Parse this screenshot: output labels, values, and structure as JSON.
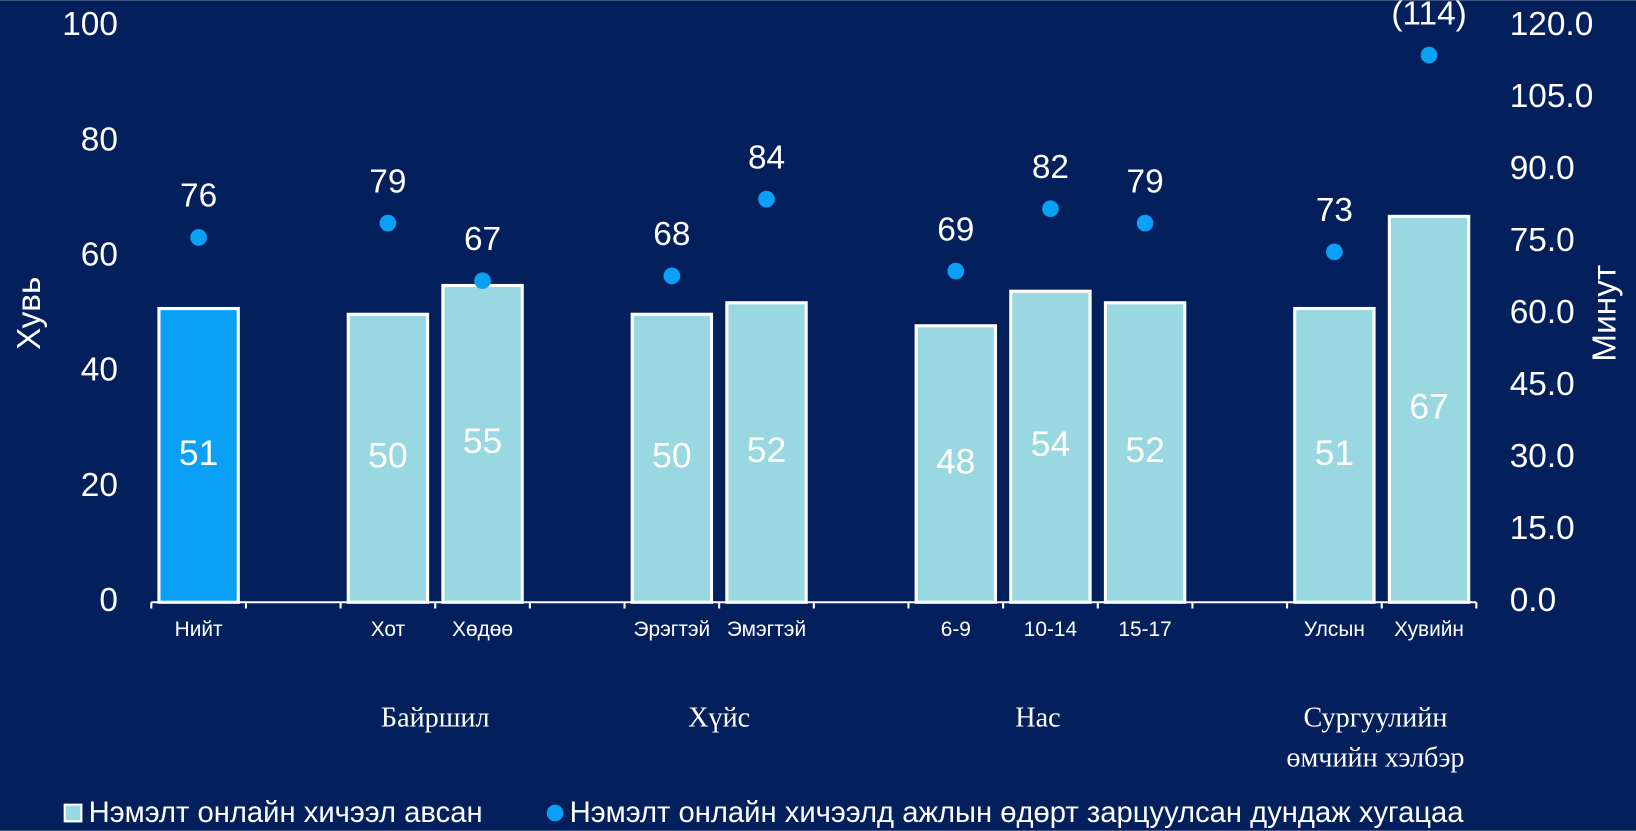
{
  "chart_data": {
    "type": "bar_dot",
    "categories": [
      "Нийт",
      null,
      "Хот",
      "Хөдөө",
      null,
      "Эрэгтэй",
      "Эмэгтэй",
      null,
      "6-9",
      "10-14",
      "15-17",
      null,
      "Улсын",
      "Хувийн"
    ],
    "groups": [
      [
        "Байршил"
      ],
      [
        "Хүйс"
      ],
      [
        "Нас"
      ],
      [
        "Сургуулийн",
        "өмчийн хэлбэр"
      ]
    ],
    "series": [
      {
        "name": "Нэмэлт онлайн хичээл авсан",
        "color": "#99d8e0",
        "colors": [
          "#0aa0f5",
          null,
          "#99d8e0",
          "#99d8e0",
          null,
          "#99d8e0",
          "#99d8e0",
          null,
          "#99d8e0",
          "#99d8e0",
          "#99d8e0",
          null,
          "#99d8e0",
          "#99d8e0"
        ],
        "values": [
          51,
          null,
          50,
          55,
          null,
          50,
          52,
          null,
          48,
          54,
          52,
          null,
          51,
          67
        ]
      },
      {
        "name": "Нэмэлт онлайн хичээлд ажлын өдөрт зарцуулсан дундаж хугацаа",
        "color": "#0aa0f5",
        "axis": "y2",
        "values": [
          76,
          null,
          79,
          67,
          null,
          68,
          84,
          null,
          69,
          82,
          79,
          null,
          73,
          114
        ],
        "value_labels": [
          "76",
          null,
          "79",
          "67",
          null,
          "68",
          "84",
          null,
          "69",
          "82",
          "79",
          null,
          "73",
          "(114)"
        ]
      }
    ],
    "ylabel": "Хувь",
    "y2label": "Минут",
    "ylim": [
      0,
      100
    ],
    "yticks": [
      0,
      20,
      40,
      60,
      80,
      100
    ],
    "y2lim": [
      0,
      120
    ],
    "y2ticks": [
      {
        "value": 0,
        "label": "0.0"
      },
      {
        "value": 15,
        "label": "15.0"
      },
      {
        "value": 30,
        "label": "30.0"
      },
      {
        "value": 45,
        "label": "45.0"
      },
      {
        "value": 60,
        "label": "60.0"
      },
      {
        "value": 75,
        "label": "75.0"
      },
      {
        "value": 90,
        "label": "90.0"
      },
      {
        "value": 105,
        "label": "105.0"
      },
      {
        "value": 120,
        "label": "120.0"
      }
    ],
    "grid": false,
    "legend": "bottom",
    "background": "#03205c"
  }
}
